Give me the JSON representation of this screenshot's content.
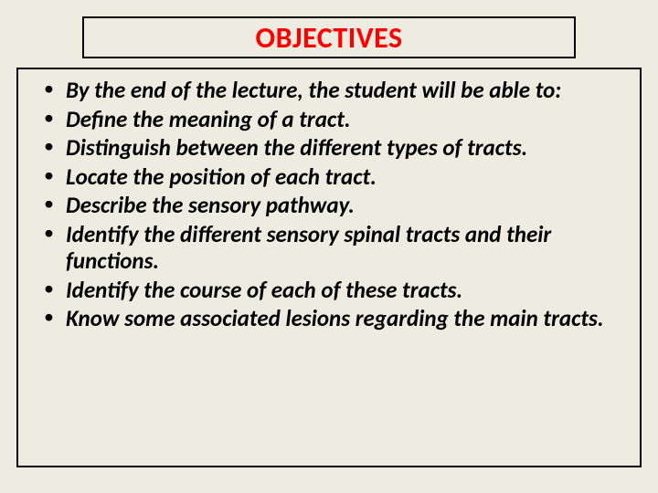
{
  "title": "OBJECTIVES",
  "title_color": "#ff0000",
  "background_color": "#eeece1",
  "border_color": "#000000",
  "text_color": "#000000",
  "font_family": "Calibri",
  "title_fontsize": 32,
  "body_fontsize": 25,
  "body_font_weight": 700,
  "body_font_style": "italic",
  "bullets": [
    "By the end of the lecture, the student will be able to:",
    "Define the meaning of a tract.",
    "Distinguish between the different types of tracts.",
    "Locate the position of each tract.",
    "Describe the sensory pathway.",
    "Identify the different sensory spinal tracts and their functions.",
    "Identify the course of each of these tracts.",
    "Know some associated lesions regarding the main tracts."
  ]
}
